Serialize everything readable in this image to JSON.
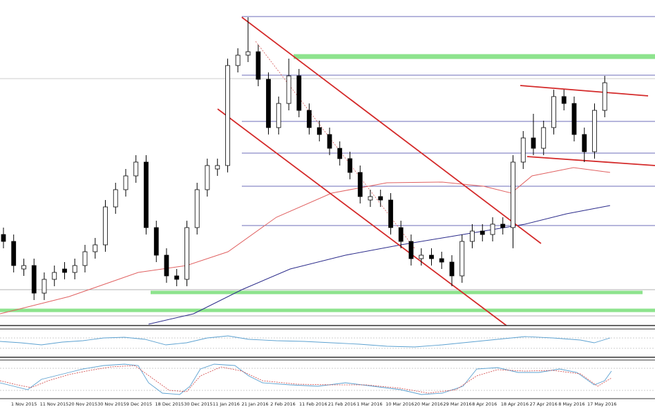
{
  "chart_data": {
    "type": "candlestick",
    "ylim": [
      0,
      470
    ],
    "xticks": [
      "1 Nov 2015",
      "11 Nov 2015",
      "20 Nov 2015",
      "30 Nov 2015",
      "9 Dec 2015",
      "18 Dec 2015",
      "30 Dec 2015",
      "11 Jan 2016",
      "21 Jan 2016",
      "2 Feb 2016",
      "11 Feb 2016",
      "21 Feb 2016",
      "1 Mar 2016",
      "10 Mar 2016",
      "20 Mar 2016",
      "29 Mar 2016",
      "8 Apr 2016",
      "18 Apr 2016",
      "27 Apr 2016",
      "8 May 2016",
      "17 May 2016"
    ],
    "open": [
      130,
      120,
      80,
      85,
      45,
      65,
      80,
      75,
      85,
      105,
      115,
      170,
      195,
      215,
      235,
      140,
      100,
      70,
      65,
      140,
      195,
      225,
      230,
      375,
      390,
      395,
      355,
      285,
      320,
      360,
      310,
      285,
      275,
      255,
      240,
      220,
      180,
      185,
      180,
      140,
      120,
      95,
      100,
      95,
      90,
      70,
      120,
      135,
      130,
      145,
      140,
      235,
      270,
      255,
      285,
      330,
      320,
      275,
      250,
      310
    ],
    "high": [
      140,
      130,
      95,
      95,
      75,
      85,
      90,
      95,
      115,
      125,
      180,
      205,
      225,
      245,
      245,
      150,
      110,
      80,
      150,
      205,
      240,
      240,
      385,
      400,
      445,
      405,
      365,
      330,
      385,
      370,
      320,
      295,
      285,
      265,
      250,
      230,
      195,
      195,
      190,
      150,
      130,
      110,
      110,
      105,
      100,
      130,
      145,
      145,
      155,
      155,
      245,
      280,
      305,
      295,
      340,
      340,
      330,
      285,
      320,
      360
    ],
    "low": [
      110,
      75,
      70,
      35,
      35,
      55,
      65,
      65,
      75,
      95,
      105,
      160,
      185,
      205,
      130,
      90,
      60,
      55,
      55,
      130,
      185,
      215,
      220,
      365,
      380,
      345,
      275,
      275,
      310,
      300,
      275,
      265,
      245,
      230,
      210,
      175,
      170,
      170,
      130,
      110,
      85,
      85,
      85,
      80,
      55,
      60,
      110,
      120,
      120,
      130,
      110,
      225,
      245,
      245,
      275,
      310,
      265,
      235,
      240,
      300
    ],
    "close": [
      120,
      85,
      85,
      45,
      65,
      75,
      75,
      85,
      105,
      115,
      170,
      195,
      215,
      235,
      140,
      100,
      70,
      65,
      140,
      195,
      230,
      230,
      375,
      390,
      395,
      355,
      285,
      320,
      360,
      310,
      285,
      275,
      255,
      240,
      220,
      185,
      185,
      180,
      140,
      120,
      95,
      100,
      95,
      90,
      70,
      120,
      135,
      130,
      145,
      140,
      235,
      270,
      255,
      285,
      330,
      320,
      275,
      250,
      310,
      350
    ],
    "up_color": "#ffffff",
    "down_color": "#000000",
    "wick_color": "#000000"
  }
}
